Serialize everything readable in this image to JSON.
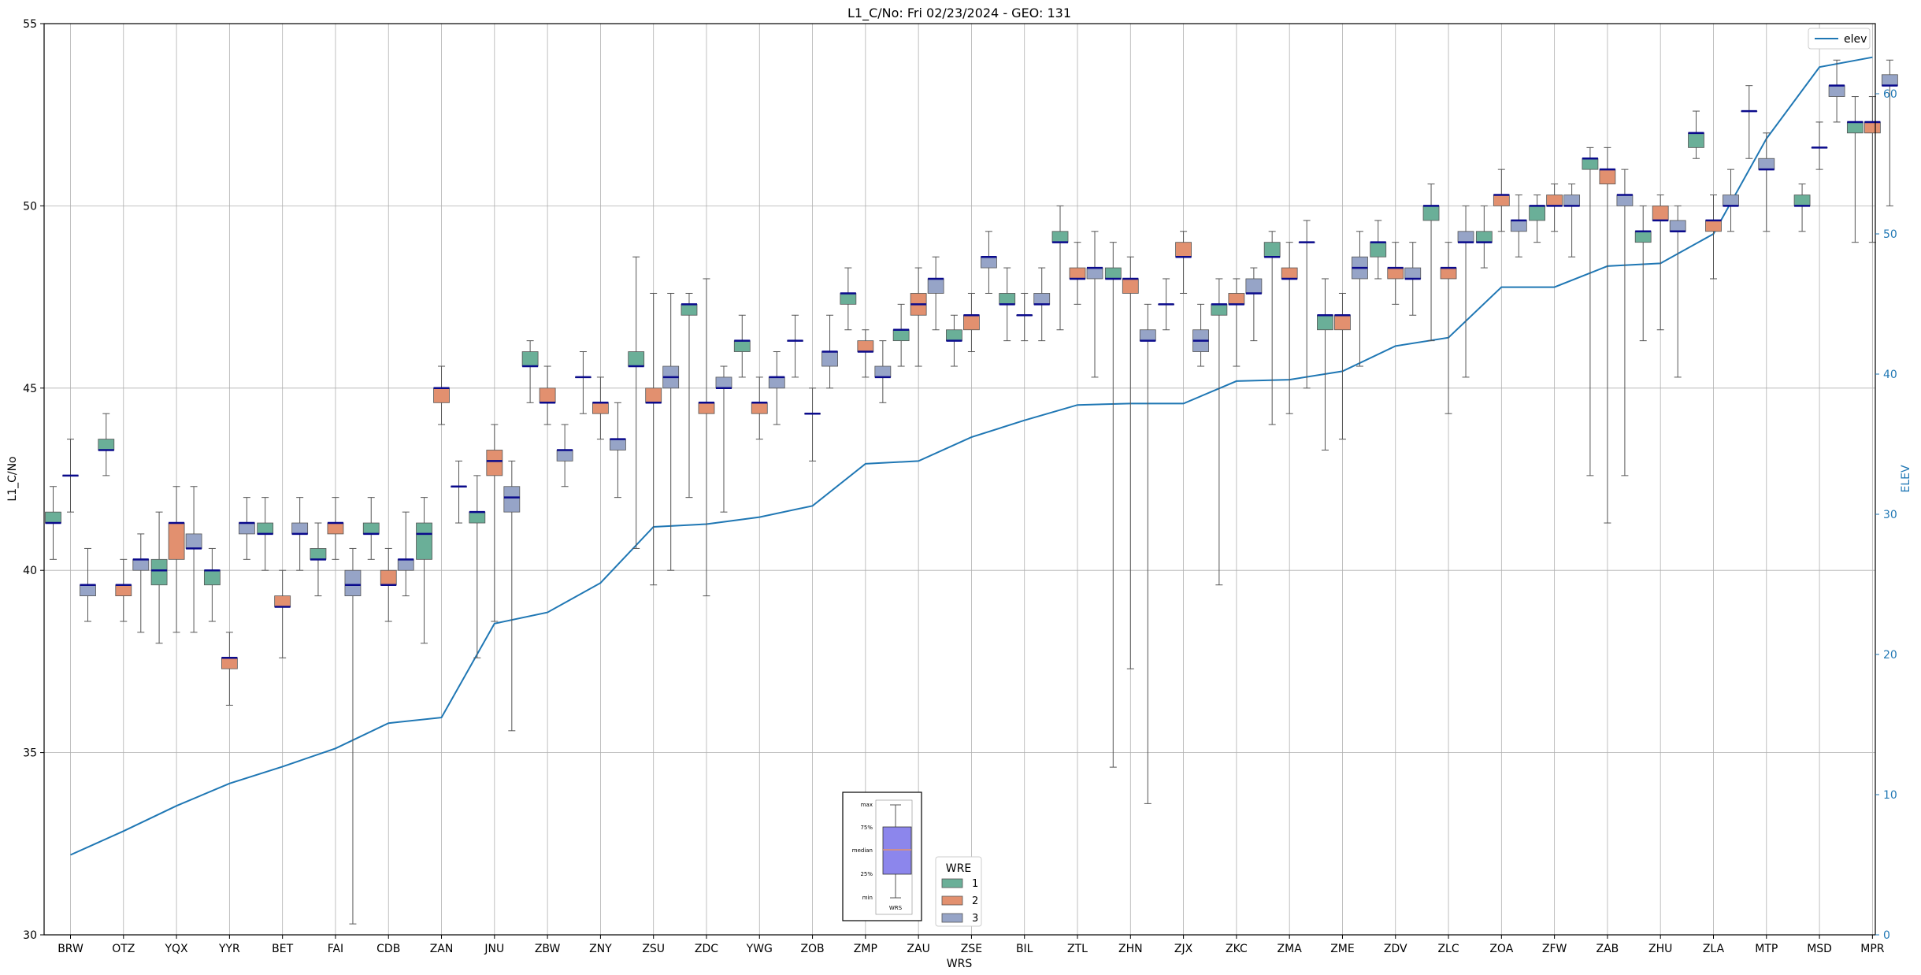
{
  "chart_data": {
    "type": "box",
    "title": "L1_C/No: Fri 02/23/2024 - GEO: 131",
    "xlabel": "WRS",
    "ylabel": "L1_C/No",
    "y2label": "ELEV",
    "ylim": [
      30,
      55
    ],
    "y2lim": [
      0,
      65
    ],
    "yticks": [
      30,
      35,
      40,
      45,
      50,
      55
    ],
    "y2ticks": [
      0,
      10,
      20,
      30,
      40,
      50,
      60
    ],
    "grid": true,
    "categories": [
      "BRW",
      "OTZ",
      "YQX",
      "YYR",
      "BET",
      "FAI",
      "CDB",
      "ZAN",
      "JNU",
      "ZBW",
      "ZNY",
      "ZSU",
      "ZDC",
      "YWG",
      "ZOB",
      "ZMP",
      "ZAU",
      "ZSE",
      "BIL",
      "ZTL",
      "ZHN",
      "ZJX",
      "ZKC",
      "ZMA",
      "ZME",
      "ZDV",
      "ZLC",
      "ZOA",
      "ZFW",
      "ZAB",
      "ZHU",
      "ZLA",
      "MTP",
      "MSD",
      "MPR"
    ],
    "elev_legend": {
      "label": "elev",
      "position": "top-right",
      "color": "#1f77b4"
    },
    "wre_legend": {
      "title": "WRE",
      "position": "bottom-center",
      "items": [
        {
          "label": "1",
          "color": "#6aaf98"
        },
        {
          "label": "2",
          "color": "#e2906f"
        },
        {
          "label": "3",
          "color": "#96a4c7"
        }
      ]
    },
    "key_legend": {
      "labels": [
        "max",
        "75%",
        "median",
        "25%",
        "min"
      ],
      "xlabel": "WRS"
    },
    "elev": [
      5.7,
      7.4,
      9.2,
      10.8,
      12.0,
      13.3,
      15.1,
      15.5,
      22.2,
      23.0,
      25.1,
      29.1,
      29.3,
      29.8,
      30.6,
      33.6,
      33.8,
      35.5,
      36.7,
      37.8,
      37.9,
      37.9,
      39.5,
      39.6,
      40.2,
      42.0,
      42.6,
      46.2,
      46.2,
      47.7,
      47.9,
      50.0,
      56.8,
      61.9,
      62.6
    ],
    "boxes": [
      {
        "cat": "BRW",
        "wre": 1,
        "min": 40.3,
        "q1": 41.3,
        "med": 41.3,
        "q3": 41.6,
        "max": 42.3
      },
      {
        "cat": "BRW",
        "wre": 3,
        "min": 41.6,
        "q1": 42.6,
        "med": 42.6,
        "q3": 42.6,
        "max": 43.6
      },
      {
        "cat": "BRW",
        "wre": 3,
        "min": 38.6,
        "q1": 39.3,
        "med": 39.6,
        "q3": 39.6,
        "max": 40.6
      },
      {
        "cat": "OTZ",
        "wre": 1,
        "min": 42.6,
        "q1": 43.3,
        "med": 43.3,
        "q3": 43.6,
        "max": 44.3
      },
      {
        "cat": "OTZ",
        "wre": 2,
        "min": 38.6,
        "q1": 39.3,
        "med": 39.6,
        "q3": 39.6,
        "max": 40.3
      },
      {
        "cat": "OTZ",
        "wre": 3,
        "min": 38.3,
        "q1": 40.0,
        "med": 40.3,
        "q3": 40.3,
        "max": 41.0
      },
      {
        "cat": "YQX",
        "wre": 1,
        "min": 38.0,
        "q1": 39.6,
        "med": 40.0,
        "q3": 40.3,
        "max": 41.6
      },
      {
        "cat": "YQX",
        "wre": 2,
        "min": 38.3,
        "q1": 40.3,
        "med": 41.3,
        "q3": 41.3,
        "max": 42.3
      },
      {
        "cat": "YQX",
        "wre": 3,
        "min": 38.3,
        "q1": 40.6,
        "med": 40.6,
        "q3": 41.0,
        "max": 42.3
      },
      {
        "cat": "YYR",
        "wre": 1,
        "min": 38.6,
        "q1": 39.6,
        "med": 40.0,
        "q3": 40.0,
        "max": 40.6
      },
      {
        "cat": "YYR",
        "wre": 2,
        "min": 36.3,
        "q1": 37.3,
        "med": 37.6,
        "q3": 37.6,
        "max": 38.3
      },
      {
        "cat": "YYR",
        "wre": 3,
        "min": 40.3,
        "q1": 41.0,
        "med": 41.3,
        "q3": 41.3,
        "max": 42.0
      },
      {
        "cat": "BET",
        "wre": 1,
        "min": 40.0,
        "q1": 41.0,
        "med": 41.0,
        "q3": 41.3,
        "max": 42.0
      },
      {
        "cat": "BET",
        "wre": 2,
        "min": 37.6,
        "q1": 39.0,
        "med": 39.0,
        "q3": 39.3,
        "max": 40.0
      },
      {
        "cat": "BET",
        "wre": 3,
        "min": 40.0,
        "q1": 41.0,
        "med": 41.0,
        "q3": 41.3,
        "max": 42.0
      },
      {
        "cat": "FAI",
        "wre": 1,
        "min": 39.3,
        "q1": 40.3,
        "med": 40.3,
        "q3": 40.6,
        "max": 41.3
      },
      {
        "cat": "FAI",
        "wre": 2,
        "min": 40.3,
        "q1": 41.0,
        "med": 41.3,
        "q3": 41.3,
        "max": 42.0
      },
      {
        "cat": "FAI",
        "wre": 3,
        "min": 30.3,
        "q1": 39.3,
        "med": 39.6,
        "q3": 40.0,
        "max": 40.6
      },
      {
        "cat": "CDB",
        "wre": 1,
        "min": 40.3,
        "q1": 41.0,
        "med": 41.0,
        "q3": 41.3,
        "max": 42.0
      },
      {
        "cat": "CDB",
        "wre": 2,
        "min": 38.6,
        "q1": 39.6,
        "med": 39.6,
        "q3": 40.0,
        "max": 40.6
      },
      {
        "cat": "CDB",
        "wre": 3,
        "min": 39.3,
        "q1": 40.0,
        "med": 40.3,
        "q3": 40.3,
        "max": 41.6
      },
      {
        "cat": "ZAN",
        "wre": 1,
        "min": 38.0,
        "q1": 40.3,
        "med": 41.0,
        "q3": 41.3,
        "max": 42.0
      },
      {
        "cat": "ZAN",
        "wre": 2,
        "min": 44.0,
        "q1": 44.6,
        "med": 45.0,
        "q3": 45.0,
        "max": 45.6
      },
      {
        "cat": "ZAN",
        "wre": 3,
        "min": 41.3,
        "q1": 42.3,
        "med": 42.3,
        "q3": 42.3,
        "max": 43.0
      },
      {
        "cat": "JNU",
        "wre": 1,
        "min": 37.6,
        "q1": 41.3,
        "med": 41.6,
        "q3": 41.6,
        "max": 42.6
      },
      {
        "cat": "JNU",
        "wre": 2,
        "min": 38.6,
        "q1": 42.6,
        "med": 43.0,
        "q3": 43.3,
        "max": 44.0
      },
      {
        "cat": "JNU",
        "wre": 3,
        "min": 35.6,
        "q1": 41.6,
        "med": 42.0,
        "q3": 42.3,
        "max": 43.0
      },
      {
        "cat": "ZBW",
        "wre": 1,
        "min": 44.6,
        "q1": 45.6,
        "med": 45.6,
        "q3": 46.0,
        "max": 46.3
      },
      {
        "cat": "ZBW",
        "wre": 2,
        "min": 44.0,
        "q1": 44.6,
        "med": 44.6,
        "q3": 45.0,
        "max": 45.6
      },
      {
        "cat": "ZBW",
        "wre": 3,
        "min": 42.3,
        "q1": 43.0,
        "med": 43.3,
        "q3": 43.3,
        "max": 44.0
      },
      {
        "cat": "ZNY",
        "wre": 1,
        "min": 44.3,
        "q1": 45.3,
        "med": 45.3,
        "q3": 45.3,
        "max": 46.0
      },
      {
        "cat": "ZNY",
        "wre": 2,
        "min": 43.6,
        "q1": 44.3,
        "med": 44.6,
        "q3": 44.6,
        "max": 45.3
      },
      {
        "cat": "ZNY",
        "wre": 3,
        "min": 42.0,
        "q1": 43.3,
        "med": 43.6,
        "q3": 43.6,
        "max": 44.6
      },
      {
        "cat": "ZSU",
        "wre": 1,
        "min": 40.6,
        "q1": 45.6,
        "med": 45.6,
        "q3": 46.0,
        "max": 48.6
      },
      {
        "cat": "ZSU",
        "wre": 2,
        "min": 39.6,
        "q1": 44.6,
        "med": 44.6,
        "q3": 45.0,
        "max": 47.6
      },
      {
        "cat": "ZSU",
        "wre": 3,
        "min": 40.0,
        "q1": 45.0,
        "med": 45.3,
        "q3": 45.6,
        "max": 47.6
      },
      {
        "cat": "ZDC",
        "wre": 1,
        "min": 42.0,
        "q1": 47.0,
        "med": 47.3,
        "q3": 47.3,
        "max": 47.6
      },
      {
        "cat": "ZDC",
        "wre": 2,
        "min": 39.3,
        "q1": 44.3,
        "med": 44.6,
        "q3": 44.6,
        "max": 48.0
      },
      {
        "cat": "ZDC",
        "wre": 3,
        "min": 41.6,
        "q1": 45.0,
        "med": 45.0,
        "q3": 45.3,
        "max": 45.6
      },
      {
        "cat": "YWG",
        "wre": 1,
        "min": 45.3,
        "q1": 46.0,
        "med": 46.3,
        "q3": 46.3,
        "max": 47.0
      },
      {
        "cat": "YWG",
        "wre": 2,
        "min": 43.6,
        "q1": 44.3,
        "med": 44.6,
        "q3": 44.6,
        "max": 45.3
      },
      {
        "cat": "YWG",
        "wre": 3,
        "min": 44.0,
        "q1": 45.0,
        "med": 45.3,
        "q3": 45.3,
        "max": 46.0
      },
      {
        "cat": "ZOB",
        "wre": 3,
        "min": 45.3,
        "q1": 46.3,
        "med": 46.3,
        "q3": 46.3,
        "max": 47.0
      },
      {
        "cat": "ZOB",
        "wre": 2,
        "min": 43.0,
        "q1": 44.3,
        "med": 44.3,
        "q3": 44.3,
        "max": 45.0
      },
      {
        "cat": "ZOB",
        "wre": 3,
        "min": 45.0,
        "q1": 45.6,
        "med": 46.0,
        "q3": 46.0,
        "max": 47.0
      },
      {
        "cat": "ZMP",
        "wre": 1,
        "min": 46.6,
        "q1": 47.3,
        "med": 47.6,
        "q3": 47.6,
        "max": 48.3
      },
      {
        "cat": "ZMP",
        "wre": 2,
        "min": 45.3,
        "q1": 46.0,
        "med": 46.0,
        "q3": 46.3,
        "max": 46.6
      },
      {
        "cat": "ZMP",
        "wre": 3,
        "min": 44.6,
        "q1": 45.3,
        "med": 45.3,
        "q3": 45.6,
        "max": 46.3
      },
      {
        "cat": "ZAU",
        "wre": 1,
        "min": 45.6,
        "q1": 46.3,
        "med": 46.6,
        "q3": 46.6,
        "max": 47.3
      },
      {
        "cat": "ZAU",
        "wre": 2,
        "min": 45.6,
        "q1": 47.0,
        "med": 47.3,
        "q3": 47.6,
        "max": 48.3
      },
      {
        "cat": "ZAU",
        "wre": 3,
        "min": 46.6,
        "q1": 47.6,
        "med": 48.0,
        "q3": 48.0,
        "max": 48.6
      },
      {
        "cat": "ZSE",
        "wre": 1,
        "min": 45.6,
        "q1": 46.3,
        "med": 46.3,
        "q3": 46.6,
        "max": 47.0
      },
      {
        "cat": "ZSE",
        "wre": 2,
        "min": 46.0,
        "q1": 46.6,
        "med": 47.0,
        "q3": 47.0,
        "max": 47.6
      },
      {
        "cat": "ZSE",
        "wre": 3,
        "min": 47.6,
        "q1": 48.3,
        "med": 48.6,
        "q3": 48.6,
        "max": 49.3
      },
      {
        "cat": "BIL",
        "wre": 1,
        "min": 46.3,
        "q1": 47.3,
        "med": 47.3,
        "q3": 47.6,
        "max": 48.3
      },
      {
        "cat": "BIL",
        "wre": 2,
        "min": 46.3,
        "q1": 47.0,
        "med": 47.0,
        "q3": 47.0,
        "max": 47.6
      },
      {
        "cat": "BIL",
        "wre": 3,
        "min": 46.3,
        "q1": 47.3,
        "med": 47.3,
        "q3": 47.6,
        "max": 48.3
      },
      {
        "cat": "ZTL",
        "wre": 1,
        "min": 46.6,
        "q1": 49.0,
        "med": 49.0,
        "q3": 49.3,
        "max": 50.0
      },
      {
        "cat": "ZTL",
        "wre": 2,
        "min": 47.3,
        "q1": 48.0,
        "med": 48.0,
        "q3": 48.3,
        "max": 49.0
      },
      {
        "cat": "ZTL",
        "wre": 3,
        "min": 45.3,
        "q1": 48.0,
        "med": 48.3,
        "q3": 48.3,
        "max": 49.3
      },
      {
        "cat": "ZHN",
        "wre": 1,
        "min": 34.6,
        "q1": 48.0,
        "med": 48.0,
        "q3": 48.3,
        "max": 49.0
      },
      {
        "cat": "ZHN",
        "wre": 2,
        "min": 37.3,
        "q1": 47.6,
        "med": 48.0,
        "q3": 48.0,
        "max": 48.6
      },
      {
        "cat": "ZHN",
        "wre": 3,
        "min": 33.6,
        "q1": 46.3,
        "med": 46.3,
        "q3": 46.6,
        "max": 47.3
      },
      {
        "cat": "ZJX",
        "wre": 3,
        "min": 46.6,
        "q1": 47.3,
        "med": 47.3,
        "q3": 47.3,
        "max": 48.0
      },
      {
        "cat": "ZJX",
        "wre": 2,
        "min": 47.6,
        "q1": 48.6,
        "med": 48.6,
        "q3": 49.0,
        "max": 49.3
      },
      {
        "cat": "ZJX",
        "wre": 3,
        "min": 45.6,
        "q1": 46.0,
        "med": 46.3,
        "q3": 46.6,
        "max": 47.3
      },
      {
        "cat": "ZKC",
        "wre": 1,
        "min": 39.6,
        "q1": 47.0,
        "med": 47.3,
        "q3": 47.3,
        "max": 48.0
      },
      {
        "cat": "ZKC",
        "wre": 2,
        "min": 45.6,
        "q1": 47.3,
        "med": 47.3,
        "q3": 47.6,
        "max": 48.0
      },
      {
        "cat": "ZKC",
        "wre": 3,
        "min": 46.3,
        "q1": 47.6,
        "med": 47.6,
        "q3": 48.0,
        "max": 48.3
      },
      {
        "cat": "ZMA",
        "wre": 1,
        "min": 44.0,
        "q1": 48.6,
        "med": 48.6,
        "q3": 49.0,
        "max": 49.3
      },
      {
        "cat": "ZMA",
        "wre": 2,
        "min": 44.3,
        "q1": 48.0,
        "med": 48.0,
        "q3": 48.3,
        "max": 49.0
      },
      {
        "cat": "ZMA",
        "wre": 3,
        "min": 45.0,
        "q1": 49.0,
        "med": 49.0,
        "q3": 49.0,
        "max": 49.6
      },
      {
        "cat": "ZME",
        "wre": 1,
        "min": 43.3,
        "q1": 46.6,
        "med": 47.0,
        "q3": 47.0,
        "max": 48.0
      },
      {
        "cat": "ZME",
        "wre": 2,
        "min": 43.6,
        "q1": 46.6,
        "med": 47.0,
        "q3": 47.0,
        "max": 47.6
      },
      {
        "cat": "ZME",
        "wre": 3,
        "min": 45.6,
        "q1": 48.0,
        "med": 48.3,
        "q3": 48.6,
        "max": 49.3
      },
      {
        "cat": "ZDV",
        "wre": 1,
        "min": 48.0,
        "q1": 48.6,
        "med": 49.0,
        "q3": 49.0,
        "max": 49.6
      },
      {
        "cat": "ZDV",
        "wre": 2,
        "min": 47.3,
        "q1": 48.0,
        "med": 48.3,
        "q3": 48.3,
        "max": 49.0
      },
      {
        "cat": "ZDV",
        "wre": 3,
        "min": 47.0,
        "q1": 48.0,
        "med": 48.0,
        "q3": 48.3,
        "max": 49.0
      },
      {
        "cat": "ZLC",
        "wre": 1,
        "min": 46.3,
        "q1": 49.6,
        "med": 50.0,
        "q3": 50.0,
        "max": 50.6
      },
      {
        "cat": "ZLC",
        "wre": 2,
        "min": 44.3,
        "q1": 48.0,
        "med": 48.3,
        "q3": 48.3,
        "max": 49.0
      },
      {
        "cat": "ZLC",
        "wre": 3,
        "min": 45.3,
        "q1": 49.0,
        "med": 49.0,
        "q3": 49.3,
        "max": 50.0
      },
      {
        "cat": "ZOA",
        "wre": 1,
        "min": 48.3,
        "q1": 49.0,
        "med": 49.0,
        "q3": 49.3,
        "max": 50.0
      },
      {
        "cat": "ZOA",
        "wre": 2,
        "min": 49.3,
        "q1": 50.0,
        "med": 50.3,
        "q3": 50.3,
        "max": 51.0
      },
      {
        "cat": "ZOA",
        "wre": 3,
        "min": 48.6,
        "q1": 49.3,
        "med": 49.6,
        "q3": 49.6,
        "max": 50.3
      },
      {
        "cat": "ZFW",
        "wre": 1,
        "min": 49.0,
        "q1": 49.6,
        "med": 50.0,
        "q3": 50.0,
        "max": 50.3
      },
      {
        "cat": "ZFW",
        "wre": 2,
        "min": 49.3,
        "q1": 50.0,
        "med": 50.0,
        "q3": 50.3,
        "max": 50.6
      },
      {
        "cat": "ZFW",
        "wre": 3,
        "min": 48.6,
        "q1": 50.0,
        "med": 50.0,
        "q3": 50.3,
        "max": 50.6
      },
      {
        "cat": "ZAB",
        "wre": 1,
        "min": 42.6,
        "q1": 51.0,
        "med": 51.3,
        "q3": 51.3,
        "max": 51.6
      },
      {
        "cat": "ZAB",
        "wre": 2,
        "min": 41.3,
        "q1": 50.6,
        "med": 51.0,
        "q3": 51.0,
        "max": 51.6
      },
      {
        "cat": "ZAB",
        "wre": 3,
        "min": 42.6,
        "q1": 50.0,
        "med": 50.3,
        "q3": 50.3,
        "max": 51.0
      },
      {
        "cat": "ZHU",
        "wre": 1,
        "min": 46.3,
        "q1": 49.0,
        "med": 49.3,
        "q3": 49.3,
        "max": 50.0
      },
      {
        "cat": "ZHU",
        "wre": 2,
        "min": 46.6,
        "q1": 49.6,
        "med": 49.6,
        "q3": 50.0,
        "max": 50.3
      },
      {
        "cat": "ZHU",
        "wre": 3,
        "min": 45.3,
        "q1": 49.3,
        "med": 49.3,
        "q3": 49.6,
        "max": 50.0
      },
      {
        "cat": "ZLA",
        "wre": 1,
        "min": 51.3,
        "q1": 51.6,
        "med": 52.0,
        "q3": 52.0,
        "max": 52.6
      },
      {
        "cat": "ZLA",
        "wre": 2,
        "min": 48.0,
        "q1": 49.3,
        "med": 49.6,
        "q3": 49.6,
        "max": 50.3
      },
      {
        "cat": "ZLA",
        "wre": 3,
        "min": 49.3,
        "q1": 50.0,
        "med": 50.0,
        "q3": 50.3,
        "max": 51.0
      },
      {
        "cat": "MTP",
        "wre": 3,
        "min": 51.3,
        "q1": 52.6,
        "med": 52.6,
        "q3": 52.6,
        "max": 53.3
      },
      {
        "cat": "MTP",
        "wre": 3,
        "min": 49.3,
        "q1": 51.0,
        "med": 51.0,
        "q3": 51.3,
        "max": 52.0
      },
      {
        "cat": "MSD",
        "wre": 1,
        "min": 49.3,
        "q1": 50.0,
        "med": 50.0,
        "q3": 50.3,
        "max": 50.6
      },
      {
        "cat": "MSD",
        "wre": 3,
        "min": 51.0,
        "q1": 51.6,
        "med": 51.6,
        "q3": 51.6,
        "max": 52.3
      },
      {
        "cat": "MSD",
        "wre": 3,
        "min": 52.3,
        "q1": 53.0,
        "med": 53.3,
        "q3": 53.3,
        "max": 54.0
      },
      {
        "cat": "MPR",
        "wre": 1,
        "min": 49.0,
        "q1": 52.0,
        "med": 52.3,
        "q3": 52.3,
        "max": 53.0
      },
      {
        "cat": "MPR",
        "wre": 2,
        "min": 49.0,
        "q1": 52.0,
        "med": 52.3,
        "q3": 52.3,
        "max": 53.0
      },
      {
        "cat": "MPR",
        "wre": 3,
        "min": 50.0,
        "q1": 53.3,
        "med": 53.3,
        "q3": 53.6,
        "max": 54.0
      }
    ]
  }
}
